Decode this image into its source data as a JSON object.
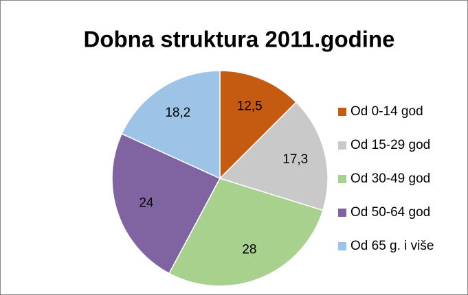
{
  "chart_data": {
    "type": "pie",
    "title": "Dobna struktura 2011.godine",
    "categories": [
      "Od 0-14 god",
      "Od 15-29 god",
      "Od 30-49 god",
      "Od 50-64 god",
      "Od 65 g. i više"
    ],
    "values": [
      12.5,
      17.3,
      28,
      24,
      18.2
    ],
    "value_labels": [
      "12,5",
      "17,3",
      "28",
      "24",
      "18,2"
    ],
    "colors": [
      "#c55a11",
      "#c9c9c9",
      "#a9d18e",
      "#8064a2",
      "#9dc3e6"
    ],
    "legend": "right"
  }
}
